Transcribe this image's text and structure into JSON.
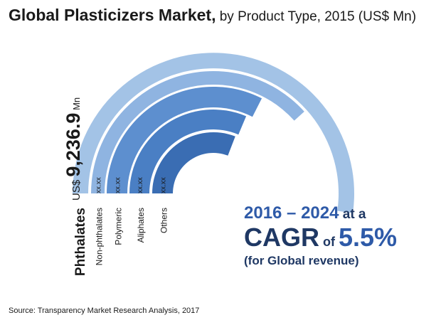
{
  "title": {
    "main": "Global Plasticizers Market,",
    "sub": " by Product Type, 2015 (US$ Mn)"
  },
  "chart_data": {
    "type": "radial-bar",
    "title": "Global Plasticizers Market, by Product Type, 2015 (US$ Mn)",
    "categories": [
      "Phthalates",
      "Non-phthalates",
      "Polymeric",
      "Aliphates",
      "Others"
    ],
    "value_labels": [
      "9,236.9",
      "xx.xx",
      "xx.xx",
      "xx.xx",
      "xx.xx"
    ],
    "values": [
      9236.9,
      null,
      null,
      null,
      null
    ],
    "highlight": {
      "prefix": "US$",
      "value": "9,236.9",
      "unit": "Mn"
    },
    "colors": [
      "#a3c3e6",
      "#8fb4e1",
      "#5d8fcf",
      "#4a7fc4",
      "#3a6db3"
    ]
  },
  "cagr": {
    "years": "2016 – 2024",
    "at_a": " at a",
    "cagr_word": "CAGR",
    "of_word": " of ",
    "rate": "5.5%",
    "note": "(for Global revenue)"
  },
  "source": "Source: Transparency Market Research Analysis, 2017"
}
